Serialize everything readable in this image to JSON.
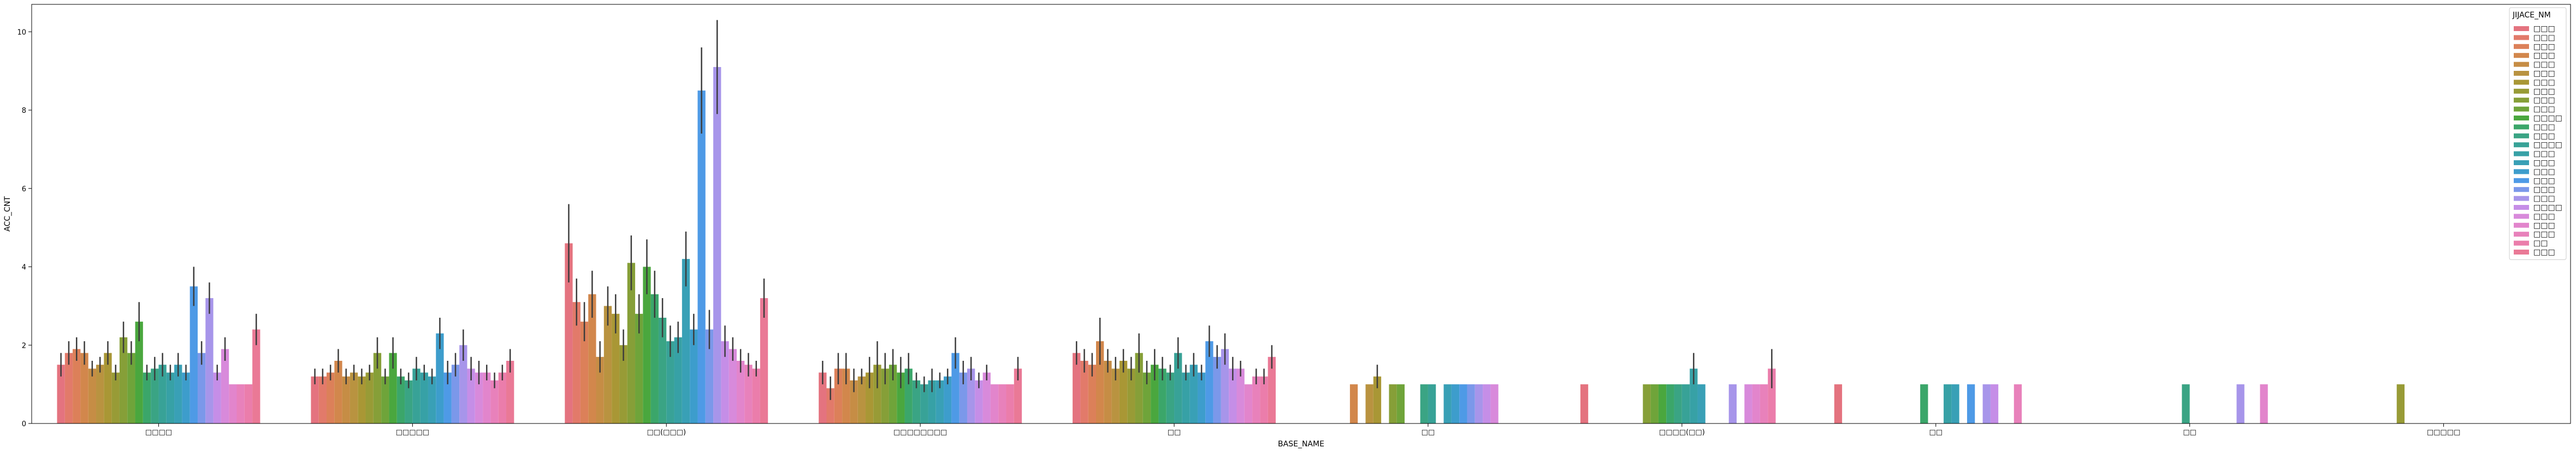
{
  "chart_data": {
    "type": "bar",
    "xlabel": "BASE_NAME",
    "ylabel": "ACC_CNT",
    "ylim": [
      0,
      10.7
    ],
    "yticks": [
      0,
      2,
      4,
      6,
      8,
      10
    ],
    "legend": {
      "title": "JIJACE_NM",
      "placement": "right"
    },
    "categories": [
      "□□□□",
      "□□□□□",
      "□□(□□□)",
      "□□□□□□□□",
      "□□",
      "□□",
      "□□□□(□□)",
      "□□",
      "□□",
      "□□□□□"
    ],
    "series": [
      {
        "name": "□□□",
        "color": "#e4737f",
        "values": [
          1.5,
          1.2,
          4.6,
          1.3,
          1.8,
          null,
          1.0,
          1.0,
          null,
          null
        ],
        "err": [
          0.3,
          0.2,
          1.0,
          0.3,
          0.3,
          null,
          null,
          null,
          null,
          null
        ]
      },
      {
        "name": "□□□",
        "color": "#e27a6a",
        "values": [
          1.8,
          1.2,
          3.1,
          0.9,
          1.6,
          null,
          null,
          null,
          null,
          null
        ],
        "err": [
          0.3,
          0.2,
          0.6,
          0.3,
          0.3,
          null,
          null,
          null,
          null,
          null
        ]
      },
      {
        "name": "□□□",
        "color": "#dc8059",
        "values": [
          1.9,
          1.3,
          2.6,
          1.4,
          1.5,
          null,
          null,
          null,
          null,
          null
        ],
        "err": [
          0.3,
          0.2,
          0.5,
          0.4,
          0.3,
          null,
          null,
          null,
          null,
          null
        ]
      },
      {
        "name": "□□□",
        "color": "#d2874c",
        "values": [
          1.8,
          1.6,
          3.3,
          1.4,
          2.1,
          1.0,
          null,
          null,
          null,
          null
        ],
        "err": [
          0.3,
          0.3,
          0.6,
          0.4,
          0.6,
          null,
          null,
          null,
          null,
          null
        ]
      },
      {
        "name": "□□□",
        "color": "#c68d45",
        "values": [
          1.4,
          1.2,
          1.7,
          1.1,
          1.6,
          null,
          null,
          null,
          null,
          null
        ],
        "err": [
          0.2,
          0.2,
          0.4,
          0.3,
          0.3,
          null,
          null,
          null,
          null,
          null
        ]
      },
      {
        "name": "□□□",
        "color": "#b99340",
        "values": [
          1.5,
          1.3,
          3.0,
          1.2,
          1.4,
          1.0,
          null,
          null,
          null,
          null
        ],
        "err": [
          0.2,
          0.2,
          0.5,
          0.2,
          0.3,
          null,
          null,
          null,
          null,
          null
        ]
      },
      {
        "name": "□□□",
        "color": "#a99735",
        "values": [
          1.8,
          1.2,
          2.8,
          1.3,
          1.6,
          1.2,
          null,
          null,
          null,
          null
        ],
        "err": [
          0.3,
          0.2,
          0.5,
          0.4,
          0.3,
          0.3,
          null,
          null,
          null,
          null
        ]
      },
      {
        "name": "□□□",
        "color": "#989b36",
        "values": [
          1.3,
          1.3,
          2.0,
          1.5,
          1.4,
          null,
          null,
          null,
          null,
          1.0
        ],
        "err": [
          0.2,
          0.2,
          0.4,
          0.6,
          0.3,
          null,
          null,
          null,
          null,
          null
        ]
      },
      {
        "name": "□□□",
        "color": "#869f38",
        "values": [
          2.2,
          1.8,
          4.1,
          1.4,
          1.8,
          1.0,
          1.0,
          null,
          null,
          null
        ],
        "err": [
          0.4,
          0.4,
          0.7,
          0.4,
          0.5,
          null,
          null,
          null,
          null,
          null
        ]
      },
      {
        "name": "□□□",
        "color": "#6fa43a",
        "values": [
          1.8,
          1.2,
          2.8,
          1.5,
          1.3,
          1.0,
          1.0,
          null,
          null,
          null
        ],
        "err": [
          0.3,
          0.2,
          0.5,
          0.4,
          0.3,
          null,
          null,
          null,
          null,
          null
        ]
      },
      {
        "name": "□□□□",
        "color": "#4aa73e",
        "values": [
          2.6,
          1.8,
          4.0,
          1.3,
          1.5,
          null,
          1.0,
          null,
          null,
          null
        ],
        "err": [
          0.5,
          0.4,
          0.7,
          0.4,
          0.4,
          null,
          null,
          null,
          null,
          null
        ]
      },
      {
        "name": "□□□",
        "color": "#3ba66a",
        "values": [
          1.3,
          1.2,
          3.3,
          1.4,
          1.4,
          null,
          1.0,
          1.0,
          null,
          null
        ],
        "err": [
          0.2,
          0.2,
          0.6,
          0.4,
          0.3,
          null,
          null,
          null,
          null,
          null
        ]
      },
      {
        "name": "□□□",
        "color": "#3aa484",
        "values": [
          1.4,
          1.1,
          2.7,
          1.1,
          1.3,
          1.0,
          1.0,
          null,
          1.0,
          null
        ],
        "err": [
          0.3,
          0.2,
          0.5,
          0.2,
          0.2,
          null,
          null,
          null,
          null,
          null
        ]
      },
      {
        "name": "□□□□",
        "color": "#38a297",
        "values": [
          1.5,
          1.4,
          2.1,
          1.0,
          1.8,
          1.0,
          1.0,
          null,
          null,
          null
        ],
        "err": [
          0.3,
          0.3,
          0.4,
          0.2,
          0.4,
          null,
          null,
          null,
          null,
          null
        ]
      },
      {
        "name": "□□□",
        "color": "#37a1a6",
        "values": [
          1.3,
          1.3,
          2.2,
          1.1,
          1.3,
          null,
          1.4,
          1.0,
          null,
          null
        ],
        "err": [
          0.2,
          0.2,
          0.4,
          0.3,
          0.2,
          null,
          0.4,
          null,
          null,
          null
        ]
      },
      {
        "name": "□□□",
        "color": "#39a0b6",
        "values": [
          1.5,
          1.2,
          4.2,
          1.1,
          1.5,
          1.0,
          1.0,
          1.0,
          null,
          null
        ],
        "err": [
          0.3,
          0.2,
          0.7,
          0.2,
          0.3,
          null,
          null,
          null,
          null,
          null
        ]
      },
      {
        "name": "□□□",
        "color": "#3d9dcc",
        "values": [
          1.3,
          2.3,
          2.4,
          1.2,
          1.3,
          1.0,
          null,
          null,
          null,
          null
        ],
        "err": [
          0.2,
          0.4,
          0.4,
          0.2,
          0.2,
          null,
          null,
          null,
          null,
          null
        ]
      },
      {
        "name": "□□□",
        "color": "#4e9ae6",
        "values": [
          3.5,
          1.3,
          8.5,
          1.8,
          2.1,
          1.0,
          null,
          1.0,
          null,
          null
        ],
        "err": [
          0.5,
          0.3,
          1.1,
          0.4,
          0.4,
          null,
          null,
          null,
          null,
          null
        ]
      },
      {
        "name": "□□□",
        "color": "#7b98ea",
        "values": [
          1.8,
          1.5,
          2.4,
          1.3,
          1.7,
          1.0,
          null,
          null,
          null,
          null
        ],
        "err": [
          0.3,
          0.3,
          0.5,
          0.3,
          0.3,
          null,
          null,
          null,
          null,
          null
        ]
      },
      {
        "name": "□□□",
        "color": "#a795ea",
        "values": [
          3.2,
          2.0,
          9.1,
          1.4,
          1.9,
          1.0,
          1.0,
          1.0,
          1.0,
          null
        ],
        "err": [
          0.4,
          0.4,
          1.2,
          0.3,
          0.4,
          null,
          null,
          null,
          null,
          null
        ]
      },
      {
        "name": "□□□□",
        "color": "#c58ee7",
        "values": [
          1.3,
          1.4,
          2.1,
          1.1,
          1.4,
          1.0,
          null,
          1.0,
          null,
          null
        ],
        "err": [
          0.2,
          0.3,
          0.4,
          0.2,
          0.3,
          null,
          null,
          null,
          null,
          null
        ]
      },
      {
        "name": "□□□",
        "color": "#d88adb",
        "values": [
          1.9,
          1.3,
          1.9,
          1.3,
          1.4,
          1.0,
          1.0,
          null,
          null,
          null
        ],
        "err": [
          0.3,
          0.3,
          0.3,
          0.2,
          0.2,
          null,
          null,
          null,
          null,
          null
        ]
      },
      {
        "name": "□□□",
        "color": "#e285cc",
        "values": [
          1.0,
          1.3,
          1.6,
          1.0,
          1.0,
          null,
          1.0,
          null,
          1.0,
          null
        ],
        "err": [
          0.0,
          0.2,
          0.3,
          0.0,
          0.0,
          null,
          null,
          null,
          null,
          null
        ]
      },
      {
        "name": "□□□",
        "color": "#e881bb",
        "values": [
          1.0,
          1.1,
          1.5,
          1.0,
          1.2,
          null,
          1.0,
          1.0,
          null,
          null
        ],
        "err": [
          0.0,
          0.2,
          0.3,
          0.0,
          0.2,
          null,
          null,
          null,
          null,
          null
        ]
      },
      {
        "name": "□□",
        "color": "#eb7dab",
        "values": [
          1.0,
          1.3,
          1.4,
          1.0,
          1.2,
          null,
          1.4,
          null,
          null,
          null
        ],
        "err": [
          0.0,
          0.2,
          0.2,
          0.0,
          0.2,
          null,
          0.5,
          null,
          null,
          null
        ]
      },
      {
        "name": "□□□",
        "color": "#ea7996",
        "values": [
          2.4,
          1.6,
          3.2,
          1.4,
          1.7,
          null,
          null,
          null,
          null,
          null
        ],
        "err": [
          0.4,
          0.3,
          0.5,
          0.3,
          0.3,
          null,
          null,
          null,
          null,
          null
        ]
      }
    ]
  }
}
